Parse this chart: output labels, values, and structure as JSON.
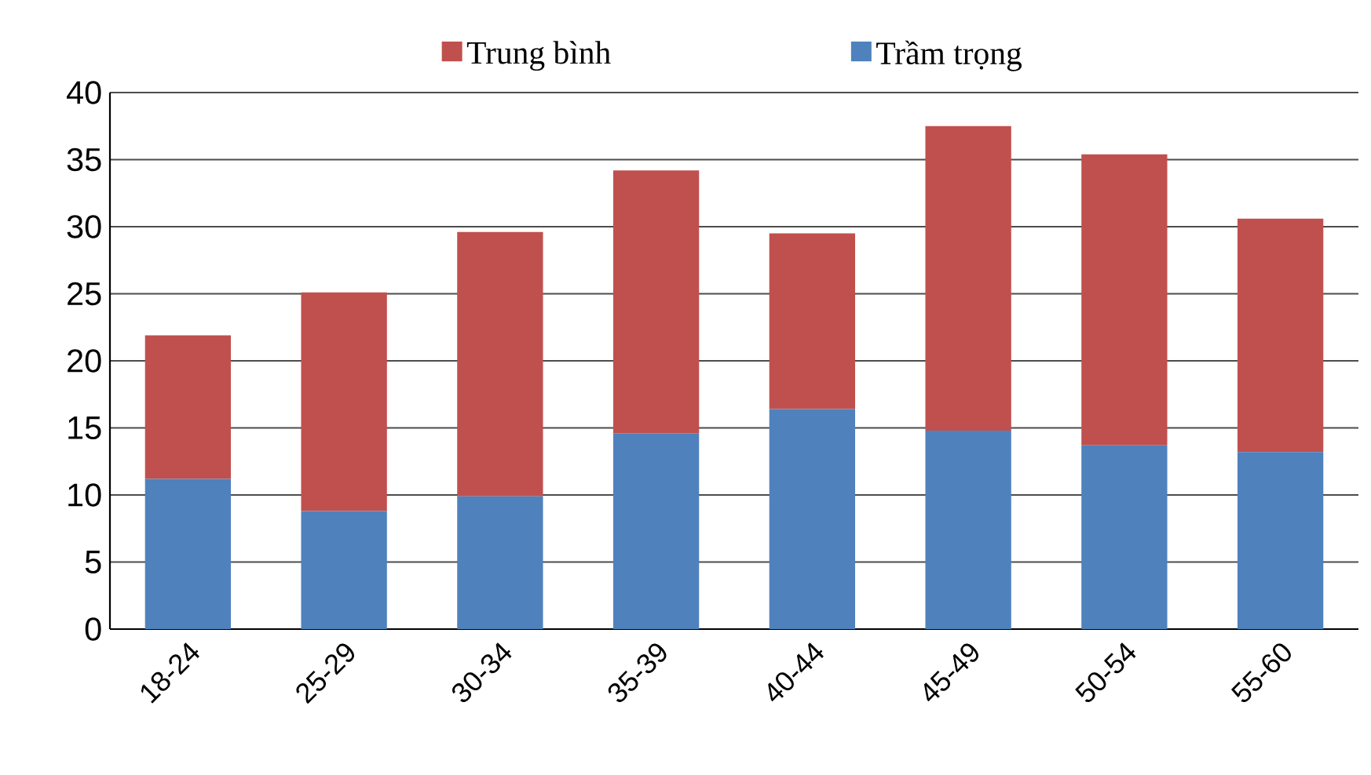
{
  "chart_data": {
    "type": "bar",
    "stacked": true,
    "categories": [
      "18-24",
      "25-29",
      "30-34",
      "35-39",
      "40-44",
      "45-49",
      "50-54",
      "55-60"
    ],
    "series": [
      {
        "name": "Trầm trọng",
        "color": "#4f81bd",
        "values": [
          11.2,
          8.8,
          9.9,
          14.6,
          16.4,
          14.8,
          13.7,
          13.2
        ]
      },
      {
        "name": "Trung bình",
        "color": "#c0504d",
        "values": [
          10.7,
          16.3,
          19.7,
          19.6,
          13.1,
          22.7,
          21.7,
          17.4
        ]
      }
    ],
    "ylim": [
      0,
      40
    ],
    "yticks": [
      0,
      5,
      10,
      15,
      20,
      25,
      30,
      35,
      40
    ],
    "grid": "y",
    "legend": "top"
  }
}
